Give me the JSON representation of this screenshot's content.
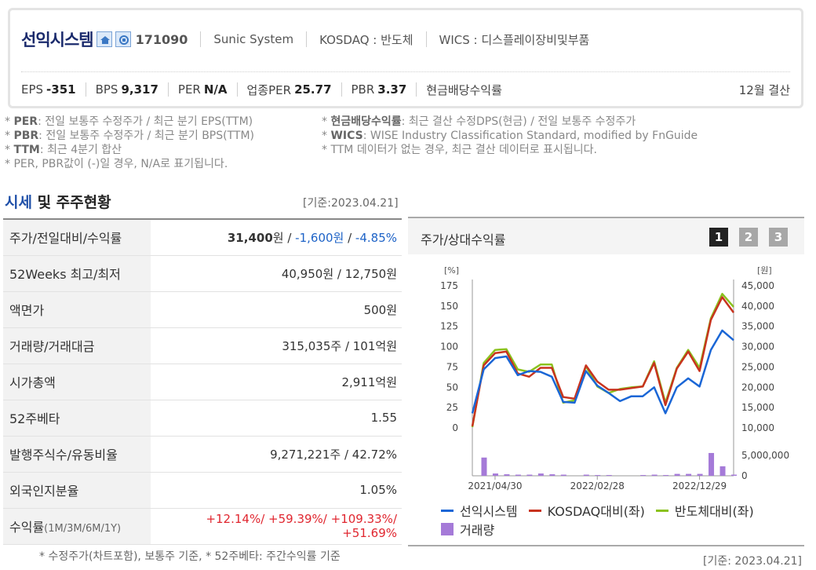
{
  "header": {
    "company_name": "선익시스템",
    "home_icon": "home-icon",
    "ir_icon": "ir-icon",
    "code": "171090",
    "eng_name": "Sunic System",
    "market": "KOSDAQ : 반도체",
    "wics": "WICS : 디스플레이장비및부품",
    "eps_label": "EPS",
    "eps_value": "-351",
    "bps_label": "BPS",
    "bps_value": "9,317",
    "per_label": "PER",
    "per_value": "N/A",
    "ind_per_label": "업종PER",
    "ind_per_value": "25.77",
    "pbr_label": "PBR",
    "pbr_value": "3.37",
    "div_label": "현금배당수익률",
    "settlement": "12월 결산"
  },
  "notes": {
    "left": [
      {
        "key": "PER",
        "text": ": 전일 보통주 수정주가 / 최근 분기 EPS(TTM)"
      },
      {
        "key": "PBR",
        "text": ": 전일 보통주 수정주가 / 최근 분기 BPS(TTM)"
      },
      {
        "key": "TTM",
        "text": ": 최근 4분기 합산"
      },
      {
        "key": "",
        "text": "PER, PBR값이 (-)일 경우, N/A로 표기됩니다."
      }
    ],
    "right": [
      {
        "key": "현금배당수익률",
        "text": ": 최근 결산 수정DPS(현금) / 전일 보통주 수정주가"
      },
      {
        "key": "WICS",
        "text": ": WISE Industry Classification Standard, modified by FnGuide"
      },
      {
        "key": "",
        "text": "TTM 데이터가 없는 경우, 최근 결산 데이터로 표시됩니다."
      }
    ]
  },
  "section": {
    "title_accent": "시세",
    "title_rest": " 및 주주현황",
    "date": "[기준:2023.04.21]"
  },
  "table": {
    "rows": [
      {
        "label": "주가/전일대비/수익률"
      },
      {
        "label": "52Weeks 최고/최저",
        "value": "40,950원 / 12,750원"
      },
      {
        "label": "액면가",
        "value": "500원"
      },
      {
        "label": "거래량/거래대금",
        "value": "315,035주 / 101억원"
      },
      {
        "label": "시가총액",
        "value": "2,911억원"
      },
      {
        "label": "52주베타",
        "value": "1.55"
      },
      {
        "label": "발행주식수/유동비율",
        "value": "9,271,221주 / 42.72%"
      },
      {
        "label": "외국인지분율",
        "value": "1.05%"
      },
      {
        "label": "수익률",
        "label_small": "(1M/3M/6M/1Y)"
      }
    ],
    "price": "31,400",
    "price_unit": "원",
    "change": "-1,600원",
    "change_rate": "-4.85%",
    "returns": [
      "+12.14%",
      "+59.39%",
      "+109.33%",
      "+51.69%"
    ],
    "note": "* 수정주가(차트포함), 보통주 기준, * 52주베타: 주간수익률 기준"
  },
  "chart_panel": {
    "title": "주가/상대수익률",
    "pages": [
      "1",
      "2",
      "3"
    ],
    "date": "[기준: 2023.04.21]"
  },
  "chart_data": {
    "type": "line",
    "x_ticks": [
      "2021/04/30",
      "2022/02/28",
      "2022/12/29"
    ],
    "left_unit": "[%]",
    "right_unit": "[원]",
    "left_ticks": [
      "175",
      "150",
      "125",
      "100",
      "75",
      "50",
      "25",
      "0"
    ],
    "right_ticks": [
      "45,000",
      "40,000",
      "35,000",
      "30,000",
      "25,000",
      "20,000",
      "15,000",
      "10,000"
    ],
    "volume_ticks": [
      "5,000,000",
      "0"
    ],
    "ylim_left": [
      0,
      175
    ],
    "series": [
      {
        "name": "선익시스템",
        "color": "#1a66d6",
        "values": [
          18,
          72,
          86,
          88,
          65,
          70,
          69,
          63,
          32,
          31,
          70,
          52,
          43,
          33,
          39,
          39,
          50,
          18,
          50,
          61,
          51,
          96,
          120,
          108
        ]
      },
      {
        "name": "KOSDAQ대비(좌)",
        "color": "#c8331e",
        "values": [
          2,
          77,
          92,
          94,
          67,
          63,
          74,
          74,
          38,
          36,
          77,
          57,
          47,
          47,
          49,
          51,
          80,
          28,
          73,
          94,
          70,
          133,
          161,
          142
        ]
      },
      {
        "name": "반도체대비(좌)",
        "color": "#8bc21f",
        "values": [
          1,
          80,
          96,
          97,
          72,
          69,
          78,
          78,
          31,
          34,
          76,
          51,
          43,
          48,
          50,
          51,
          82,
          31,
          74,
          96,
          74,
          135,
          165,
          149
        ]
      }
    ],
    "volume": {
      "name": "거래량",
      "color": "#a57ad8",
      "values": [
        0,
        4.8,
        0.6,
        0.4,
        0.3,
        0.3,
        0.6,
        0.4,
        0.3,
        0,
        0.3,
        0.2,
        0.2,
        0,
        0,
        0.2,
        0.3,
        0.2,
        0.5,
        0.5,
        0.5,
        6.0,
        2.5,
        0.3
      ]
    }
  }
}
